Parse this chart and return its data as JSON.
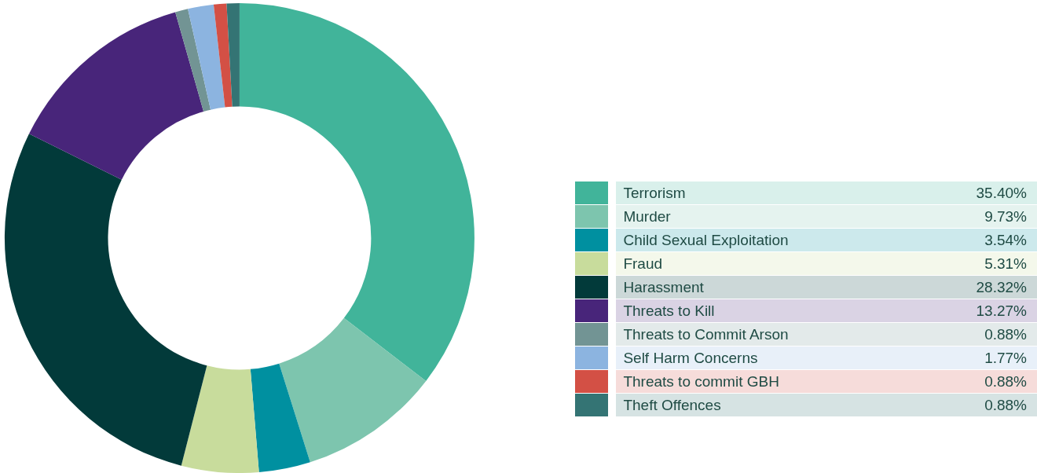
{
  "chart_data": {
    "type": "donut",
    "legend": "right",
    "categories": [
      "Terrorism",
      "Murder",
      "Child Sexual Exploitation",
      "Fraud",
      "Harassment",
      "Threats to Kill",
      "Threats to Commit Arson",
      "Self Harm Concerns",
      "Threats to commit GBH",
      "Theft Offences"
    ],
    "values": [
      35.4,
      9.73,
      3.54,
      5.31,
      28.32,
      13.27,
      0.88,
      1.77,
      0.88,
      0.88
    ],
    "value_labels": [
      "35.40%",
      "9.73%",
      "3.54%",
      "5.31%",
      "28.32%",
      "13.27%",
      "0.88%",
      "1.77%",
      "0.88%",
      "0.88%"
    ],
    "colors": [
      "#41b49a",
      "#7dc5ae",
      "#0090a0",
      "#c8dc9c",
      "#023a3a",
      "#48257a",
      "#729494",
      "#8cb4e0",
      "#d35045",
      "#347474"
    ]
  }
}
